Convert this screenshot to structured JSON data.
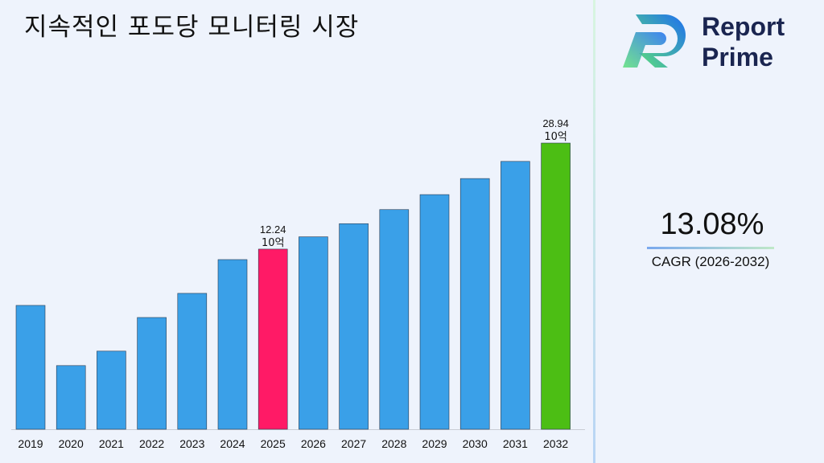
{
  "title": "지속적인 포도당 모니터링 시장",
  "brand": {
    "line1": "Report",
    "line2": "Prime"
  },
  "cagr": {
    "value": "13.08%",
    "label": "CAGR (2026-2032)"
  },
  "colors": {
    "bar": "#3aa0e8",
    "highlight_2025": "#ff1a66",
    "highlight_2032": "#4cbe14"
  },
  "chart_data": {
    "type": "bar",
    "title": "지속적인 포도당 모니터링 시장",
    "categories": [
      "2019",
      "2020",
      "2021",
      "2022",
      "2023",
      "2024",
      "2025",
      "2026",
      "2027",
      "2028",
      "2029",
      "2030",
      "2031",
      "2032"
    ],
    "values": [
      6.1,
      1.77,
      2.59,
      5.04,
      7.25,
      10.95,
      12.24,
      13.84,
      15.65,
      17.7,
      20.01,
      22.63,
      25.59,
      28.94
    ],
    "unit": "10억",
    "annotations": [
      {
        "category": "2025",
        "text": "12.24",
        "unit": "10억"
      },
      {
        "category": "2032",
        "text": "28.94",
        "unit": "10억"
      }
    ],
    "xlabel": "",
    "ylabel": "",
    "grid": false,
    "legend": "none"
  }
}
